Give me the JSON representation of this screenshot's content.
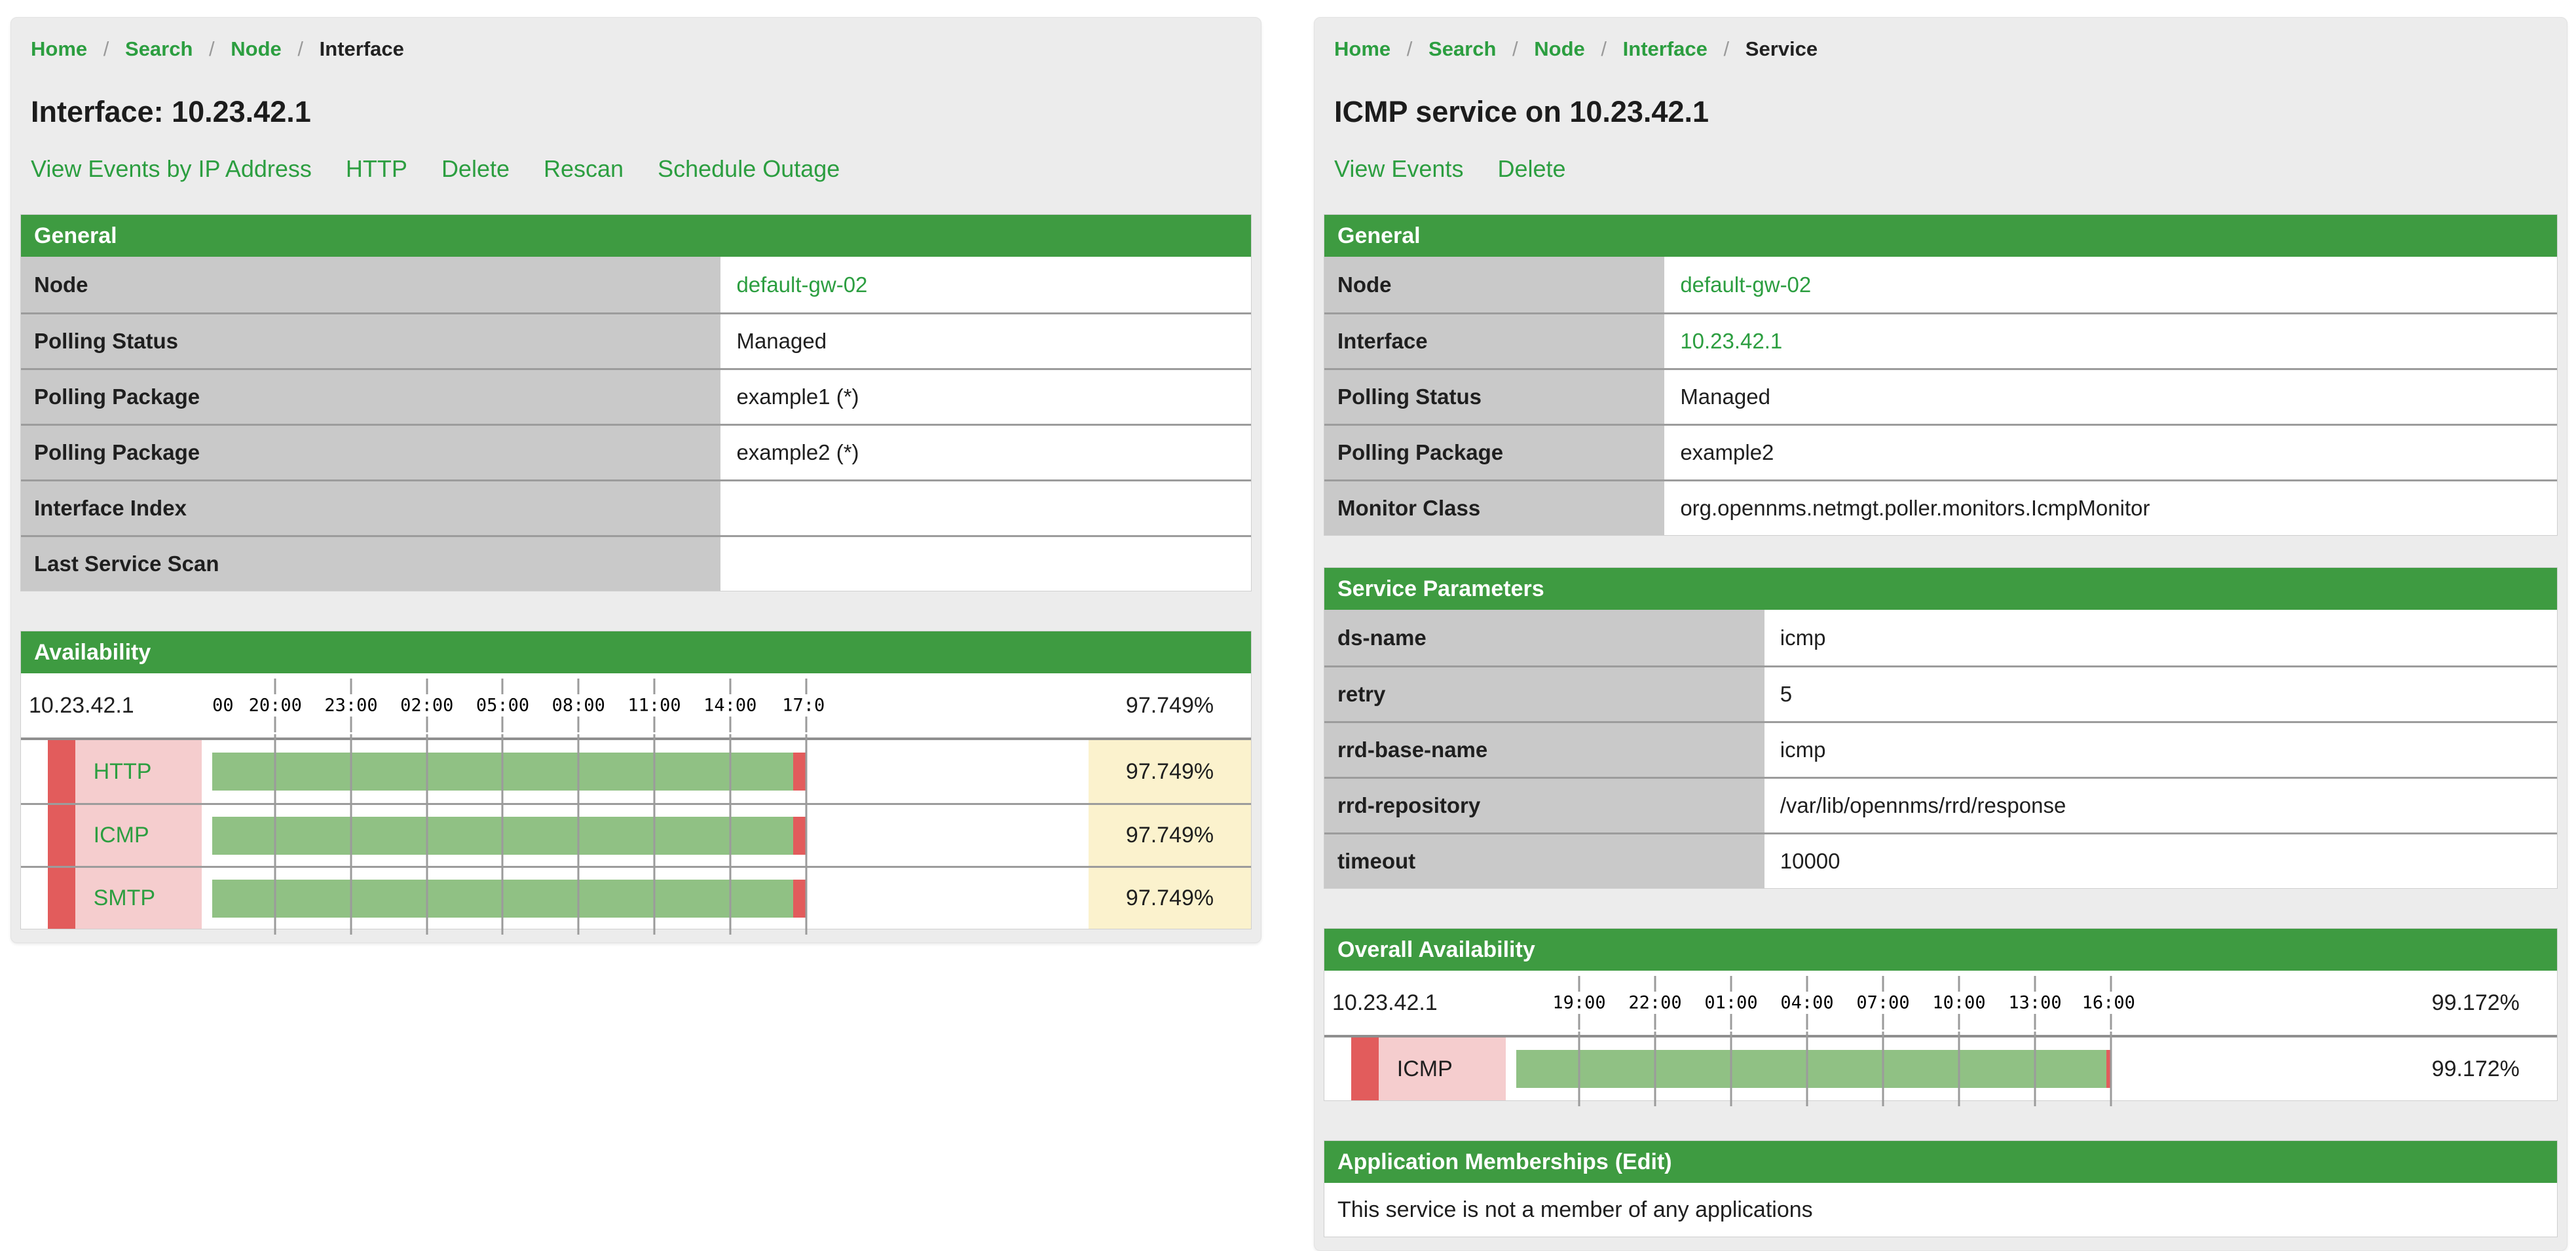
{
  "sep": "/",
  "colors": {
    "header_green": "#3e9b41",
    "link_green": "#2c9e40",
    "label_gray": "#c9c9c9",
    "bar_green": "#90c184",
    "outage_red": "#e25c5c",
    "service_pink": "#f5cdce",
    "percent_yellow": "#fbf2cd"
  },
  "left": {
    "breadcrumb": [
      "Home",
      "Search",
      "Node",
      "Interface"
    ],
    "title": "Interface: 10.23.42.1",
    "actions": [
      "View Events by IP Address",
      "HTTP",
      "Delete",
      "Rescan",
      "Schedule Outage"
    ],
    "general": {
      "header": "General",
      "rows": [
        {
          "label": "Node",
          "value": "default-gw-02"
        },
        {
          "label": "Polling Status",
          "value": "Managed"
        },
        {
          "label": "Polling Package",
          "value": "example1 (*)"
        },
        {
          "label": "Polling Package",
          "value": "example2 (*)"
        },
        {
          "label": "Interface Index",
          "value": ""
        },
        {
          "label": "Last Service Scan",
          "value": ""
        }
      ]
    },
    "availability": {
      "header": "Availability",
      "ip": "10.23.42.1",
      "total_percent": "97.749%",
      "tick_labels": [
        "00",
        "20:00",
        "23:00",
        "02:00",
        "05:00",
        "08:00",
        "11:00",
        "14:00",
        "17:0"
      ],
      "rows": [
        {
          "service": "HTTP",
          "percent": "97.749%",
          "green": 97.749
        },
        {
          "service": "ICMP",
          "percent": "97.749%",
          "green": 97.749
        },
        {
          "service": "SMTP",
          "percent": "97.749%",
          "green": 97.749
        }
      ]
    }
  },
  "right": {
    "breadcrumb": [
      "Home",
      "Search",
      "Node",
      "Interface",
      "Service"
    ],
    "title": "ICMP service on 10.23.42.1",
    "actions": [
      "View Events",
      "Delete"
    ],
    "general": {
      "header": "General",
      "rows": [
        {
          "label": "Node",
          "value": "default-gw-02"
        },
        {
          "label": "Interface",
          "value": "10.23.42.1"
        },
        {
          "label": "Polling Status",
          "value": "Managed"
        },
        {
          "label": "Polling Package",
          "value": "example2"
        },
        {
          "label": "Monitor Class",
          "value": "org.opennms.netmgt.poller.monitors.IcmpMonitor"
        }
      ]
    },
    "service_parameters": {
      "header": "Service Parameters",
      "rows": [
        {
          "label": "ds-name",
          "value": "icmp"
        },
        {
          "label": "retry",
          "value": "5"
        },
        {
          "label": "rrd-base-name",
          "value": "icmp"
        },
        {
          "label": "rrd-repository",
          "value": "/var/lib/opennms/rrd/response"
        },
        {
          "label": "timeout",
          "value": "10000"
        }
      ]
    },
    "overall_availability": {
      "header": "Overall Availability",
      "ip": "10.23.42.1",
      "total_percent": "99.172%",
      "tick_labels": [
        "19:00",
        "22:00",
        "01:00",
        "04:00",
        "07:00",
        "10:00",
        "13:00",
        "16:00"
      ],
      "rows": [
        {
          "service": "ICMP",
          "percent": "99.172%",
          "green": 99.172
        }
      ]
    },
    "applications": {
      "header": "Application Memberships",
      "edit_label": "(Edit)",
      "message": "This service is not a member of any applications"
    }
  }
}
